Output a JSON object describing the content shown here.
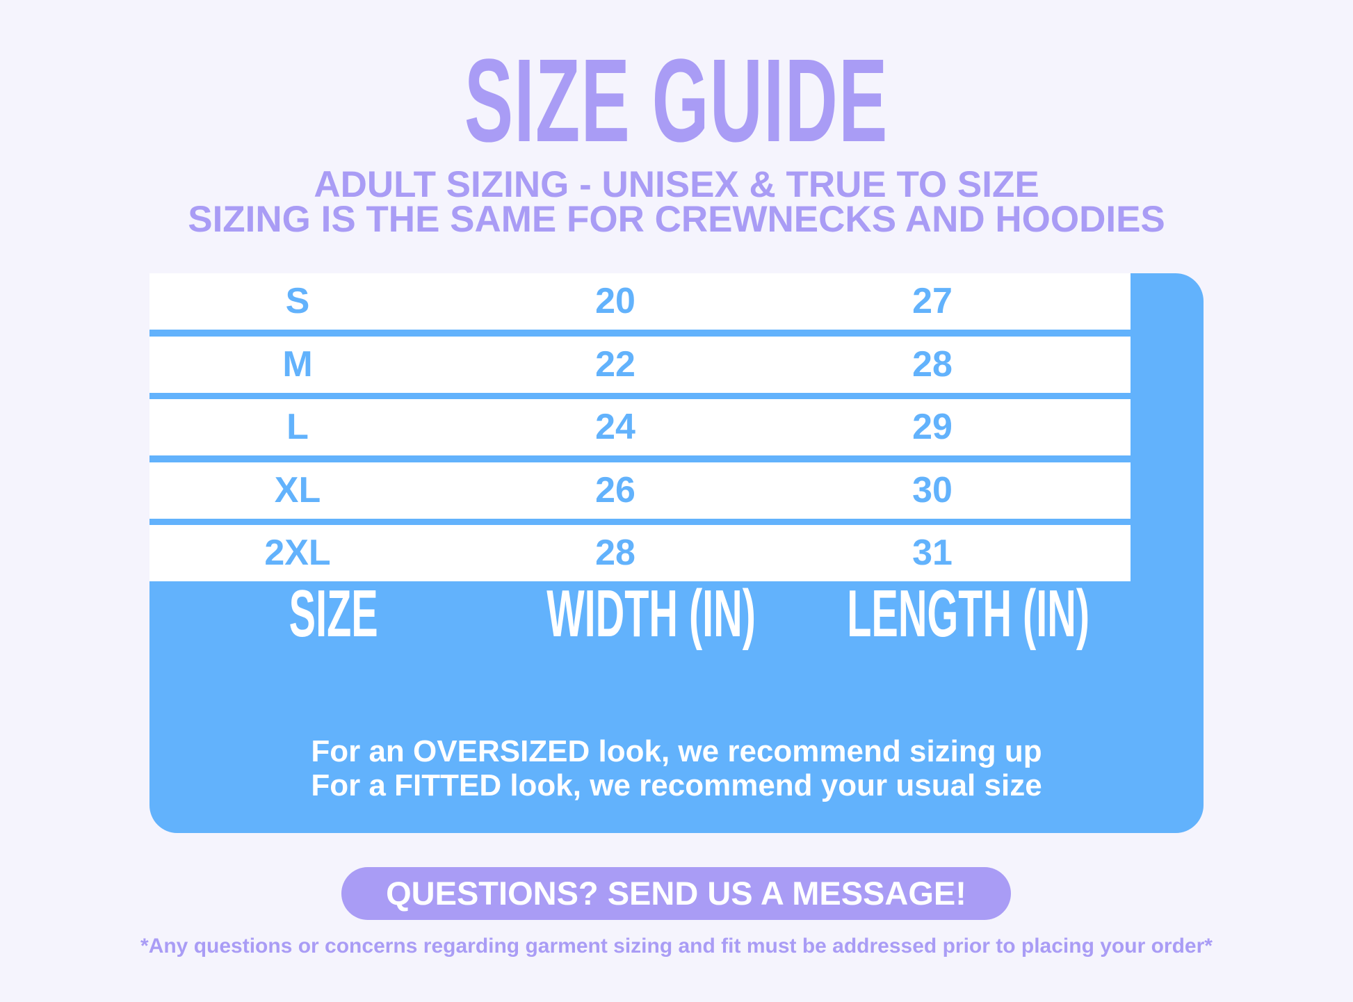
{
  "title": "SIZE GUIDE",
  "subtitle_lines": [
    "ADULT SIZING - UNISEX & TRUE TO SIZE",
    "SIZING IS THE SAME FOR CREWNECKS AND HOODIES"
  ],
  "table": {
    "headers": [
      "SIZE",
      "WIDTH (IN)",
      "LENGTH (IN)"
    ],
    "rows": [
      [
        "S",
        "20",
        "27"
      ],
      [
        "M",
        "22",
        "28"
      ],
      [
        "L",
        "24",
        "29"
      ],
      [
        "XL",
        "26",
        "30"
      ],
      [
        "2XL",
        "28",
        "31"
      ]
    ]
  },
  "notes": [
    "For an OVERSIZED look, we recommend sizing up",
    "For a FITTED look, we recommend your usual size"
  ],
  "cta_button": "QUESTIONS? SEND US A MESSAGE!",
  "disclaimer": "*Any questions or concerns regarding garment sizing and fit must be addressed prior to placing your order*",
  "colors": {
    "background": "#f5f4fd",
    "purple": "#a99cf5",
    "blue": "#62b2fc"
  }
}
